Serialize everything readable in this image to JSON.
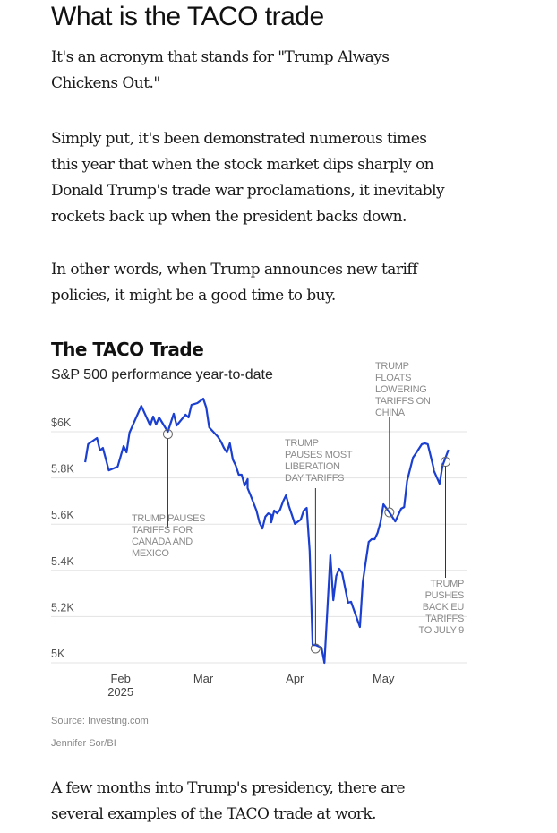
{
  "article": {
    "heading": "What is the TACO trade",
    "paragraphs": [
      [
        "It's an acronym that stands for \"Trump Always",
        "Chickens Out.\""
      ],
      [
        "Simply put, it's been demonstrated numerous times",
        "this year that when the stock market dips sharply on",
        "Donald Trump's trade war proclamations, it inevitably",
        "rockets back up when the president backs down."
      ],
      [
        "In other words, when Trump announces new tariff",
        "policies, it might be a good time to buy."
      ]
    ],
    "closing": [
      "A few months into Trump's presidency, there are",
      "several examples of the TACO trade at work."
    ]
  },
  "chart_data": {
    "type": "line",
    "title": "The TACO Trade",
    "subtitle": "S&P 500 performance year-to-date",
    "source": "Source: Investing.com",
    "credit": "Jennifer Sor/BI",
    "xlabel": "",
    "ylabel": "",
    "ylim": [
      4980,
      6150
    ],
    "y_ticks": [
      {
        "value": 6000,
        "label": "$6K"
      },
      {
        "value": 5800,
        "label": "5.8K"
      },
      {
        "value": 5600,
        "label": "5.6K"
      },
      {
        "value": 5400,
        "label": "5.4K"
      },
      {
        "value": 5200,
        "label": "5.2K"
      },
      {
        "value": 5000,
        "label": "5K"
      }
    ],
    "x_domain": [
      "2025-01-13",
      "2025-05-27"
    ],
    "x_ticks": [
      {
        "date": "2025-02-01",
        "label": "Feb",
        "sublabel": "2025"
      },
      {
        "date": "2025-03-01",
        "label": "Mar"
      },
      {
        "date": "2025-04-01",
        "label": "Apr"
      },
      {
        "date": "2025-05-01",
        "label": "May"
      }
    ],
    "grid": true,
    "line_color": "#1a3fd1",
    "series": [
      {
        "name": "S&P 500",
        "points": [
          [
            "2025-01-20",
            5868
          ],
          [
            "2025-01-21",
            5946
          ],
          [
            "2025-01-24",
            5973
          ],
          [
            "2025-01-25",
            5919
          ],
          [
            "2025-01-26",
            5930
          ],
          [
            "2025-01-28",
            5833
          ],
          [
            "2025-01-31",
            5849
          ],
          [
            "2025-02-02",
            5938
          ],
          [
            "2025-02-03",
            5911
          ],
          [
            "2025-02-04",
            5996
          ],
          [
            "2025-02-08",
            6112
          ],
          [
            "2025-02-11",
            6027
          ],
          [
            "2025-02-12",
            6066
          ],
          [
            "2025-02-13",
            6031
          ],
          [
            "2025-02-14",
            6062
          ],
          [
            "2025-02-17",
            6000
          ],
          [
            "2025-02-19",
            6078
          ],
          [
            "2025-02-20",
            6027
          ],
          [
            "2025-02-23",
            6074
          ],
          [
            "2025-02-24",
            6062
          ],
          [
            "2025-02-25",
            6116
          ],
          [
            "2025-02-27",
            6124
          ],
          [
            "2025-03-01",
            6143
          ],
          [
            "2025-03-02",
            6105
          ],
          [
            "2025-03-03",
            6019
          ],
          [
            "2025-03-06",
            5977
          ],
          [
            "2025-03-07",
            5957
          ],
          [
            "2025-03-08",
            5930
          ],
          [
            "2025-03-09",
            5911
          ],
          [
            "2025-03-10",
            5950
          ],
          [
            "2025-03-11",
            5880
          ],
          [
            "2025-03-12",
            5853
          ],
          [
            "2025-03-13",
            5814
          ],
          [
            "2025-03-14",
            5814
          ],
          [
            "2025-03-15",
            5767
          ],
          [
            "2025-03-16",
            5795
          ],
          [
            "2025-03-16",
            5756
          ],
          [
            "2025-03-17",
            5725
          ],
          [
            "2025-03-19",
            5659
          ],
          [
            "2025-03-20",
            5608
          ],
          [
            "2025-03-21",
            5581
          ],
          [
            "2025-03-22",
            5632
          ],
          [
            "2025-03-23",
            5647
          ],
          [
            "2025-03-24",
            5640
          ],
          [
            "2025-03-24",
            5608
          ],
          [
            "2025-03-25",
            5659
          ],
          [
            "2025-03-26",
            5647
          ],
          [
            "2025-03-27",
            5663
          ],
          [
            "2025-03-28",
            5698
          ],
          [
            "2025-03-29",
            5725
          ],
          [
            "2025-03-30",
            5678
          ],
          [
            "2025-04-01",
            5601
          ],
          [
            "2025-04-03",
            5620
          ],
          [
            "2025-04-04",
            5659
          ],
          [
            "2025-04-05",
            5670
          ],
          [
            "2025-04-06",
            5484
          ],
          [
            "2025-04-07",
            5077
          ],
          [
            "2025-04-08",
            5077
          ],
          [
            "2025-04-10",
            5066
          ],
          [
            "2025-04-11",
            5000
          ],
          [
            "2025-04-13",
            5465
          ],
          [
            "2025-04-14",
            5271
          ],
          [
            "2025-04-15",
            5376
          ],
          [
            "2025-04-16",
            5407
          ],
          [
            "2025-04-17",
            5388
          ],
          [
            "2025-04-19",
            5260
          ],
          [
            "2025-04-20",
            5264
          ],
          [
            "2025-04-23",
            5155
          ],
          [
            "2025-04-24",
            5349
          ],
          [
            "2025-04-26",
            5523
          ],
          [
            "2025-04-27",
            5535
          ],
          [
            "2025-04-28",
            5535
          ],
          [
            "2025-04-29",
            5562
          ],
          [
            "2025-04-30",
            5608
          ],
          [
            "2025-05-01",
            5686
          ],
          [
            "2025-05-03",
            5651
          ],
          [
            "2025-05-05",
            5612
          ],
          [
            "2025-05-07",
            5667
          ],
          [
            "2025-05-08",
            5674
          ],
          [
            "2025-05-09",
            5787
          ],
          [
            "2025-05-11",
            5888
          ],
          [
            "2025-05-12",
            5907
          ],
          [
            "2025-05-14",
            5946
          ],
          [
            "2025-05-15",
            5950
          ],
          [
            "2025-05-16",
            5946
          ],
          [
            "2025-05-18",
            5841
          ],
          [
            "2025-05-18",
            5833
          ],
          [
            "2025-05-20",
            5775
          ],
          [
            "2025-05-21",
            5853
          ],
          [
            "2025-05-23",
            5922
          ]
        ]
      }
    ],
    "annotations": [
      {
        "date": "2025-02-17",
        "value": 5990,
        "lines": [
          "TRUMP PAUSES",
          "TARIFFS FOR",
          "CANADA AND",
          "MEXICO"
        ],
        "placement": "below-right"
      },
      {
        "date": "2025-04-08",
        "value": 5062,
        "lines": [
          "TRUMP",
          "PAUSES MOST",
          "LIBERATION",
          "DAY TARIFFS"
        ],
        "placement": "above-left"
      },
      {
        "date": "2025-05-03",
        "value": 5651,
        "lines": [
          "TRUMP",
          "FLOATS",
          "LOWERING",
          "TARIFFS ON",
          "CHINA"
        ],
        "placement": "above"
      },
      {
        "date": "2025-05-22",
        "value": 5870,
        "lines": [
          "TRUMP",
          "PUSHES",
          "BACK EU",
          "TARIFFS",
          "TO JULY 9"
        ],
        "placement": "below-left"
      }
    ]
  }
}
